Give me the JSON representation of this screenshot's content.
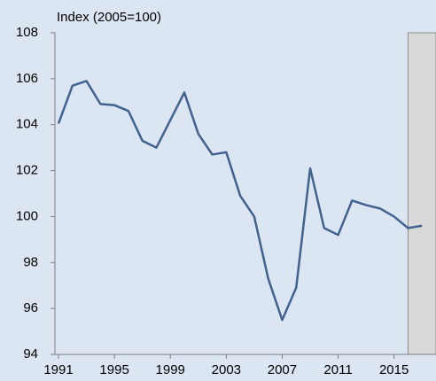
{
  "chart_data": {
    "type": "line",
    "title": "Index (2005=100)",
    "x": [
      1991,
      1992,
      1993,
      1994,
      1995,
      1996,
      1997,
      1998,
      1999,
      2000,
      2001,
      2002,
      2003,
      2004,
      2005,
      2006,
      2007,
      2008,
      2009,
      2010,
      2011,
      2012,
      2013,
      2014,
      2015,
      2016,
      2017
    ],
    "series": [
      {
        "name": "Index",
        "color": "#41628f",
        "values": [
          104.05,
          105.7,
          105.9,
          104.9,
          104.85,
          104.6,
          103.3,
          103.0,
          104.2,
          105.4,
          103.6,
          102.7,
          102.8,
          100.9,
          100.0,
          97.3,
          95.5,
          96.9,
          102.1,
          99.5,
          99.2,
          100.7,
          100.5,
          100.35,
          100.0,
          99.5,
          99.6
        ]
      }
    ],
    "xlim": [
      1991,
      2018
    ],
    "xticks": [
      1991,
      1995,
      1999,
      2003,
      2007,
      2011,
      2015
    ],
    "ylim": [
      94,
      108
    ],
    "yticks": [
      94,
      96,
      98,
      100,
      102,
      104,
      106,
      108
    ],
    "shaded_region": [
      2016,
      2018
    ],
    "shade_color": "#d9d9d9"
  }
}
